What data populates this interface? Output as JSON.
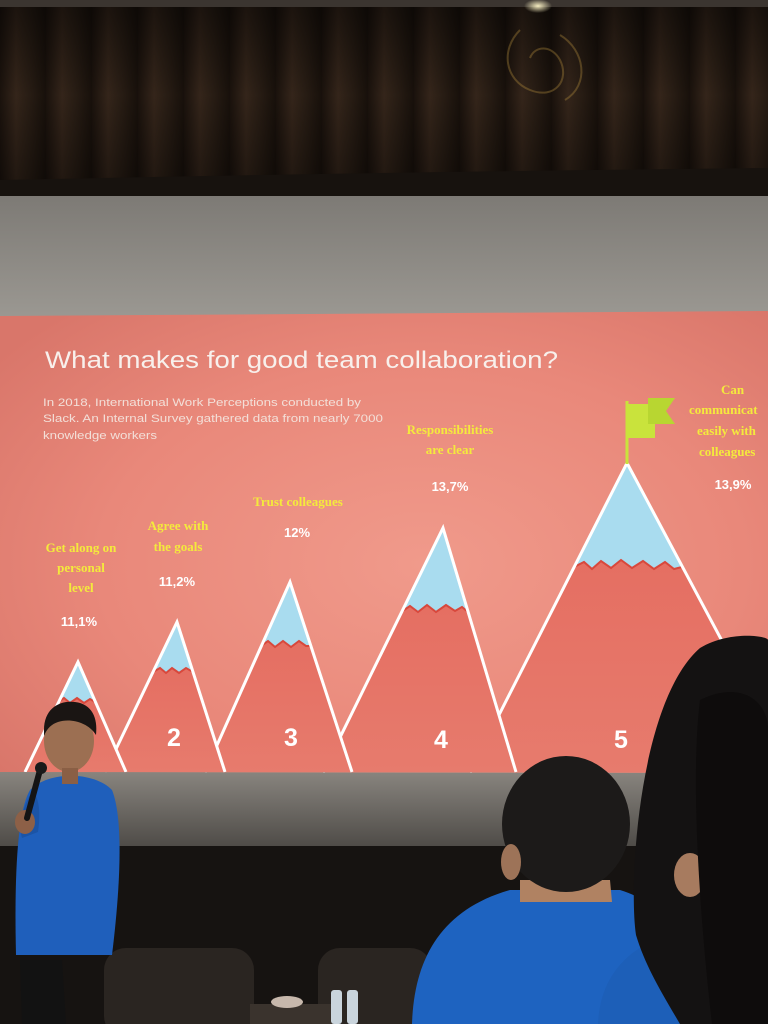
{
  "slide": {
    "title": "What makes for good team collaboration?",
    "subtitle_lines": [
      "In 2018, International Work Perceptions conducted by",
      "Slack. An Internal Survey gathered data from nearly 7000",
      "knowledge workers"
    ],
    "mountains": [
      {
        "label_lines": [
          "Get along on",
          "personal",
          "level"
        ],
        "percent": "11,1%"
      },
      {
        "label_lines": [
          "Agree with",
          "the goals"
        ],
        "percent": "11,2%",
        "number": "2"
      },
      {
        "label_lines": [
          "Trust colleagues"
        ],
        "percent": "12%",
        "number": "3"
      },
      {
        "label_lines": [
          "Responsibilities",
          "are clear"
        ],
        "percent": "13,7%",
        "number": "4"
      },
      {
        "label_lines": [
          "Can",
          "communicat",
          "easily with",
          "colleagues"
        ],
        "percent": "13,9%",
        "number": "5"
      }
    ]
  },
  "colors": {
    "slide_background": "#e98577",
    "mountain_body": "#e26a5e",
    "snow_cap": "#a9dcef",
    "label_yellow": "#f4ea3c",
    "percent_white": "#ffffff",
    "flag": "#c9e33c",
    "curtain": "#2b1e15",
    "shirt_blue": "#1f60bb"
  },
  "icons": {
    "summit_flag": "flag-icon"
  }
}
